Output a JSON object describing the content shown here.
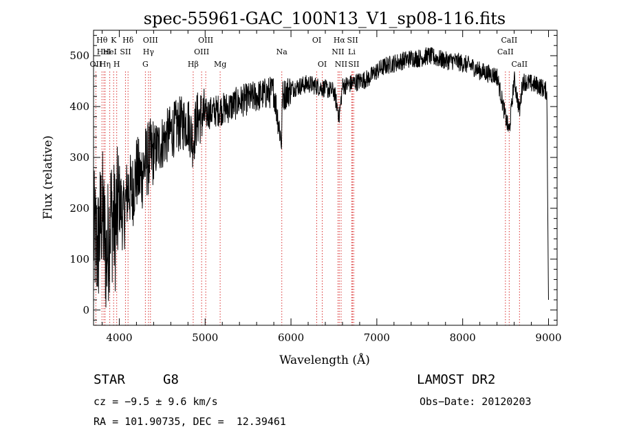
{
  "chart_data": {
    "type": "line",
    "title": "spec-55961-GAC_100N13_V1_sp08-116.fits",
    "xlabel": "Wavelength (Å)",
    "ylabel": "Flux (relative)",
    "xlim": [
      3700,
      9100
    ],
    "ylim": [
      -30,
      550
    ],
    "xticks": [
      4000,
      5000,
      6000,
      7000,
      8000,
      9000
    ],
    "yticks": [
      0,
      100,
      200,
      300,
      400,
      500
    ],
    "xtick_labels": [
      "4000",
      "5000",
      "6000",
      "7000",
      "8000",
      "9000"
    ],
    "ytick_labels": [
      "0",
      "100",
      "200",
      "300",
      "400",
      "500"
    ],
    "grid": false,
    "series": [
      {
        "x": [
          3700,
          3750,
          3800,
          3850,
          3900,
          3950,
          4000,
          4050,
          4100,
          4150,
          4200,
          4250,
          4300,
          4350,
          4400,
          4500,
          4600,
          4700,
          4800,
          4860,
          4900,
          5000,
          5100,
          5200,
          5300,
          5400,
          5500,
          5600,
          5700,
          5800,
          5890,
          5900,
          6000,
          6100,
          6200,
          6300,
          6400,
          6500,
          6563,
          6600,
          6700,
          6800,
          6900,
          7000,
          7100,
          7200,
          7300,
          7400,
          7500,
          7600,
          7700,
          7800,
          7900,
          8000,
          8100,
          8200,
          8300,
          8400,
          8498,
          8542,
          8600,
          8662,
          8700,
          8800,
          8900,
          8980,
          9000
        ],
        "y": [
          150,
          120,
          200,
          100,
          190,
          160,
          220,
          180,
          240,
          230,
          270,
          260,
          290,
          300,
          310,
          330,
          350,
          365,
          370,
          330,
          375,
          385,
          390,
          395,
          400,
          410,
          415,
          420,
          425,
          430,
          330,
          420,
          435,
          440,
          445,
          440,
          435,
          430,
          380,
          440,
          445,
          450,
          455,
          470,
          480,
          485,
          490,
          495,
          495,
          500,
          495,
          490,
          490,
          485,
          480,
          470,
          465,
          460,
          380,
          350,
          455,
          390,
          450,
          445,
          440,
          430,
          20
        ]
      }
    ],
    "lines": [
      {
        "wl": 3727,
        "label": "OII",
        "row": 3
      },
      {
        "wl": 3798,
        "label": "Hθ",
        "row": 1
      },
      {
        "wl": 3820,
        "label": "HeI",
        "row": 2
      },
      {
        "wl": 3835,
        "label": "Hη",
        "row": 3
      },
      {
        "wl": 3889,
        "label": "HeI",
        "row": 2
      },
      {
        "wl": 3934,
        "label": "K",
        "row": 1
      },
      {
        "wl": 3970,
        "label": "H",
        "row": 3
      },
      {
        "wl": 4072,
        "label": "SII",
        "row": 2
      },
      {
        "wl": 4102,
        "label": "Hδ",
        "row": 1
      },
      {
        "wl": 4304,
        "label": "G",
        "row": 3
      },
      {
        "wl": 4340,
        "label": "Hγ",
        "row": 2
      },
      {
        "wl": 4363,
        "label": "OIII",
        "row": 1
      },
      {
        "wl": 4861,
        "label": "Hβ",
        "row": 3
      },
      {
        "wl": 4959,
        "label": "OIII",
        "row": 2
      },
      {
        "wl": 5007,
        "label": "OIII",
        "row": 1
      },
      {
        "wl": 5175,
        "label": "Mg",
        "row": 3
      },
      {
        "wl": 5893,
        "label": "Na",
        "row": 2
      },
      {
        "wl": 6300,
        "label": "OI",
        "row": 1
      },
      {
        "wl": 6364,
        "label": "OI",
        "row": 3
      },
      {
        "wl": 6548,
        "label": "NII",
        "row": 2
      },
      {
        "wl": 6563,
        "label": "Hα",
        "row": 1
      },
      {
        "wl": 6584,
        "label": "NII",
        "row": 3
      },
      {
        "wl": 6708,
        "label": "Li",
        "row": 2
      },
      {
        "wl": 6717,
        "label": "SII",
        "row": 1
      },
      {
        "wl": 6731,
        "label": "SII",
        "row": 3
      },
      {
        "wl": 8498,
        "label": "CaII",
        "row": 2
      },
      {
        "wl": 8542,
        "label": "CaII",
        "row": 1
      },
      {
        "wl": 8662,
        "label": "CaII",
        "row": 3
      }
    ]
  },
  "info": {
    "class": "STAR",
    "subclass": "G8",
    "survey": "LAMOST DR2",
    "cz": "cz = −9.5 ± 9.6 km/s",
    "obs_date": "Obs−Date: 20120203",
    "radec": "RA = 101.90735, DEC =  12.39461"
  },
  "colors": {
    "line_marker": "#d92b2b",
    "spectrum": "#000000"
  }
}
